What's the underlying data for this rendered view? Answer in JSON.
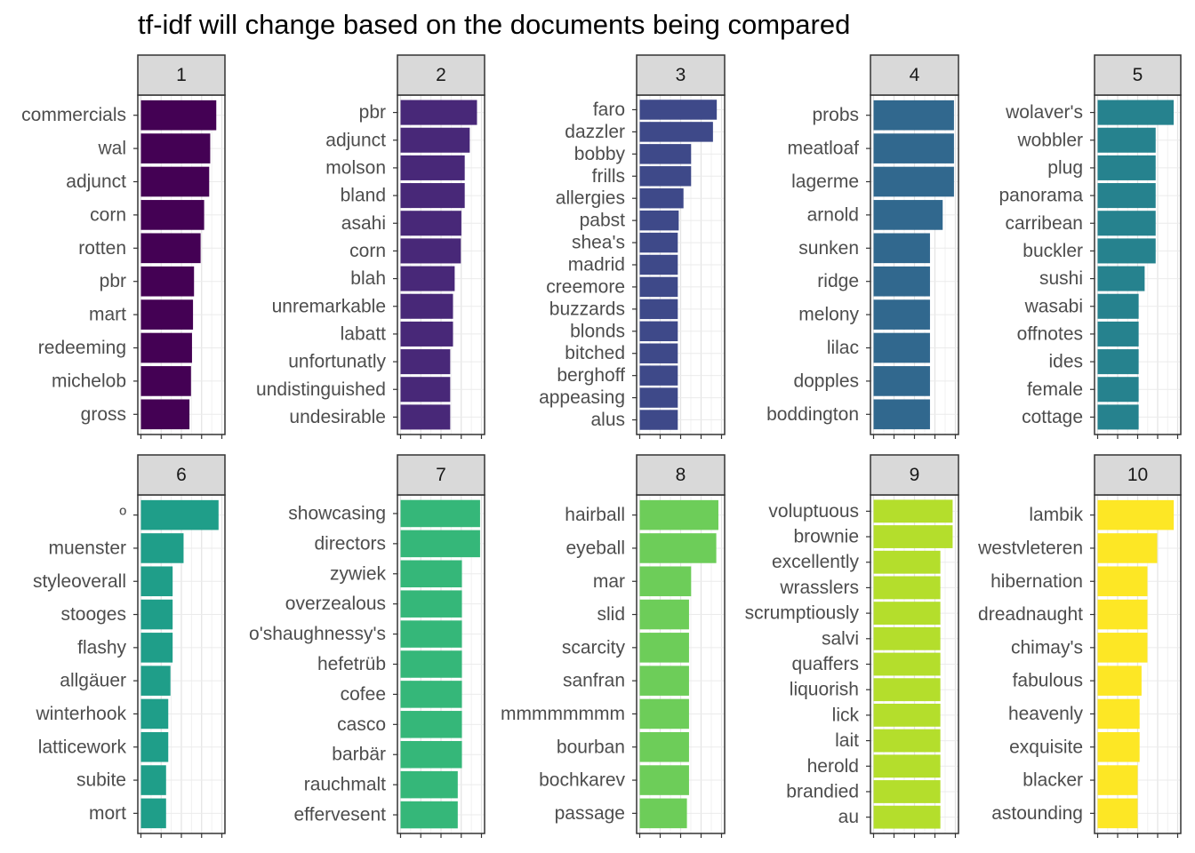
{
  "chart_data": {
    "type": "bar",
    "title": "tf-idf will change based on the documents being compared",
    "xlabel": "",
    "ylabel": "",
    "facets": [
      {
        "label": "1",
        "color": "#440154",
        "xmax": 0.0016,
        "categories": [
          "commercials",
          "wal",
          "adjunct",
          "corn",
          "rotten",
          "pbr",
          "mart",
          "redeeming",
          "michelob",
          "gross"
        ],
        "values": [
          0.00149,
          0.00137,
          0.00135,
          0.00125,
          0.00118,
          0.00105,
          0.00103,
          0.00101,
          0.00099,
          0.00096
        ]
      },
      {
        "label": "2",
        "color": "#482878",
        "xmax": 0.00145,
        "categories": [
          "pbr",
          "adjunct",
          "molson",
          "bland",
          "asahi",
          "corn",
          "blah",
          "unremarkable",
          "labatt",
          "unfortunatly",
          "undistinguished",
          "undesirable"
        ],
        "values": [
          0.00137,
          0.00124,
          0.00115,
          0.00115,
          0.00109,
          0.00108,
          0.00097,
          0.00094,
          0.00094,
          0.00089,
          0.00089,
          0.00089
        ]
      },
      {
        "label": "3",
        "color": "#3E4989",
        "xmax": 0.00043,
        "categories": [
          "faro",
          "dazzler",
          "bobby",
          "frills",
          "allergies",
          "pabst",
          "shea's",
          "madrid",
          "creemore",
          "buzzards",
          "blonds",
          "bitched",
          "berghoff",
          "appeasing",
          "alus"
        ],
        "values": [
          0.000405,
          0.000385,
          0.00027,
          0.00027,
          0.00023,
          0.000205,
          0.0002,
          0.0002,
          0.0002,
          0.0002,
          0.0002,
          0.0002,
          0.0002,
          0.0002,
          0.0002
        ]
      },
      {
        "label": "4",
        "color": "#31688E",
        "xmax": 0.00029,
        "categories": [
          "probs",
          "meatloaf",
          "lagerme",
          "arnold",
          "sunken",
          "ridge",
          "melony",
          "lilac",
          "dopples",
          "boddington"
        ],
        "values": [
          0.000285,
          0.000285,
          0.000285,
          0.000245,
          0.0002,
          0.0002,
          0.0002,
          0.0002,
          0.0002,
          0.0002
        ]
      },
      {
        "label": "5",
        "color": "#26828E",
        "xmax": 0.0004,
        "categories": [
          "wolaver's",
          "wobbler",
          "plug",
          "panorama",
          "carribean",
          "buckler",
          "sushi",
          "wasabi",
          "offnotes",
          "ides",
          "female",
          "cottage"
        ],
        "values": [
          0.00038,
          0.00029,
          0.00029,
          0.00029,
          0.00029,
          0.00029,
          0.000235,
          0.000205,
          0.000205,
          0.000205,
          0.000205,
          0.000205
        ]
      },
      {
        "label": "6",
        "color": "#1F9E89",
        "xmax": 0.00037,
        "categories": [
          "º",
          "muenster",
          "styleoverall",
          "stooges",
          "flashy",
          "allgäuer",
          "winterhook",
          "latticework",
          "subite",
          "mort"
        ],
        "values": [
          0.000355,
          0.000195,
          0.000145,
          0.000145,
          0.000145,
          0.000135,
          0.000125,
          0.000125,
          0.000115,
          0.000115
        ]
      },
      {
        "label": "7",
        "color": "#35B779",
        "xmax": 0.00029,
        "categories": [
          "showcasing",
          "directors",
          "zywiek",
          "overzealous",
          "o'shaughnessy's",
          "hefetrüb",
          "cofee",
          "casco",
          "barbär",
          "rauchmalt",
          "effervesent"
        ],
        "values": [
          0.000285,
          0.000285,
          0.00022,
          0.00022,
          0.00022,
          0.00022,
          0.00022,
          0.00022,
          0.00022,
          0.000205,
          0.000205
        ]
      },
      {
        "label": "8",
        "color": "#6DCD59",
        "xmax": 0.00039,
        "categories": [
          "hairball",
          "eyeball",
          "mar",
          "slid",
          "scarcity",
          "sanfran",
          "mmmmmmmm",
          "bourban",
          "bochkarev",
          "passage"
        ],
        "values": [
          0.000375,
          0.000365,
          0.000245,
          0.000235,
          0.000235,
          0.000235,
          0.000235,
          0.000235,
          0.000235,
          0.000225
        ]
      },
      {
        "label": "9",
        "color": "#B4DE2C",
        "xmax": 0.0003,
        "categories": [
          "voluptuous",
          "brownie",
          "excellently",
          "wrasslers",
          "scrumptiously",
          "salvi",
          "quaffers",
          "liquorish",
          "lick",
          "lait",
          "herold",
          "brandied",
          "au"
        ],
        "values": [
          0.00029,
          0.00029,
          0.000245,
          0.000245,
          0.000245,
          0.000245,
          0.000245,
          0.000245,
          0.000245,
          0.000245,
          0.000245,
          0.000245,
          0.000245
        ]
      },
      {
        "label": "10",
        "color": "#FDE725",
        "xmax": 0.00041,
        "categories": [
          "lambik",
          "westvleteren",
          "hibernation",
          "dreadnaught",
          "chimay's",
          "fabulous",
          "heavenly",
          "exquisite",
          "blacker",
          "astounding"
        ],
        "values": [
          0.00039,
          0.000305,
          0.000255,
          0.000255,
          0.000255,
          0.000225,
          0.000215,
          0.000215,
          0.000205,
          0.000205
        ]
      }
    ],
    "grid": true,
    "legend": "none"
  }
}
